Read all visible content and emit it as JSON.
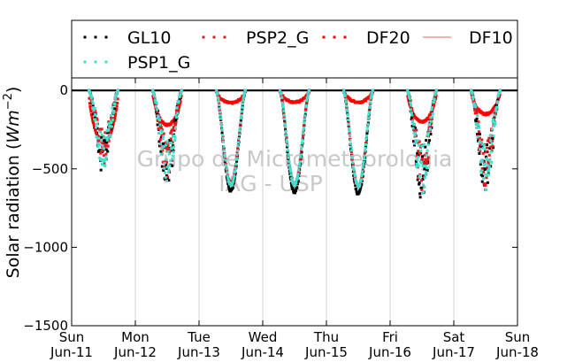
{
  "chart_data": {
    "type": "scatter",
    "title": "",
    "xlabel": "",
    "ylabel": "Solar radiation",
    "ylabel_unit_base": "Wm",
    "ylabel_unit_exp": "−2",
    "ylim": [
      -1500,
      80
    ],
    "yticks": [
      0,
      -500,
      -1000,
      -1500
    ],
    "ytick_labels": [
      "0",
      "−500",
      "−1000",
      "−1500"
    ],
    "xlim": [
      0,
      7
    ],
    "xticks": [
      {
        "day": 0,
        "line1": "Sun",
        "line2": "Jun-11"
      },
      {
        "day": 1,
        "line1": "Mon",
        "line2": "Jun-12"
      },
      {
        "day": 2,
        "line1": "Tue",
        "line2": "Jun-13"
      },
      {
        "day": 3,
        "line1": "Wed",
        "line2": "Jun-14"
      },
      {
        "day": 4,
        "line1": "Thu",
        "line2": "Jun-15"
      },
      {
        "day": 5,
        "line1": "Fri",
        "line2": "Jun-16"
      },
      {
        "day": 6,
        "line1": "Sat",
        "line2": "Jun-17"
      },
      {
        "day": 7,
        "line1": "Sun",
        "line2": "Jun-18"
      }
    ],
    "grid": "vertical",
    "legend": {
      "placement": "top-outside",
      "entries": [
        {
          "name": "GL10",
          "marker": "dots",
          "color": "#000000"
        },
        {
          "name": "PSP2_G",
          "marker": "dots",
          "color": "#e41a1c"
        },
        {
          "name": "DF20",
          "marker": "dots",
          "color": "#ff0000"
        },
        {
          "name": "DF10",
          "marker": "line",
          "color": "#f08080"
        },
        {
          "name": "PSP1_G",
          "marker": "dots",
          "color": "#40e0d0"
        }
      ]
    },
    "watermark": [
      "Grupo de Micrometeorologia",
      "IAG - USP"
    ],
    "daily_peaks": [
      {
        "day": 0,
        "GL10": -470,
        "PSP2_G": -420,
        "PSP1_G": -440,
        "DF20": -330
      },
      {
        "day": 1,
        "GL10": -560,
        "PSP2_G": -500,
        "PSP1_G": -520,
        "DF20": -220
      },
      {
        "day": 2,
        "GL10": -640,
        "PSP2_G": -590,
        "PSP1_G": -600,
        "DF20": -80
      },
      {
        "day": 3,
        "GL10": -650,
        "PSP2_G": -600,
        "PSP1_G": -600,
        "DF20": -75
      },
      {
        "day": 4,
        "GL10": -660,
        "PSP2_G": -610,
        "PSP1_G": -610,
        "DF20": -75
      },
      {
        "day": 5,
        "GL10": -620,
        "PSP2_G": -560,
        "PSP1_G": -580,
        "DF20": -200
      },
      {
        "day": 6,
        "GL10": -580,
        "PSP2_G": -540,
        "PSP1_G": -560,
        "DF20": -150
      }
    ],
    "series_colors": {
      "GL10": "#000000",
      "PSP2_G": "#e41a1c",
      "DF20": "#ff0000",
      "DF10": "#f08080",
      "PSP1_G": "#40e0d0"
    }
  }
}
